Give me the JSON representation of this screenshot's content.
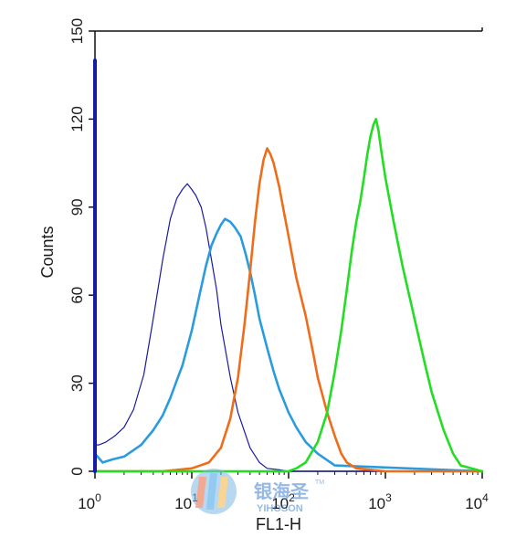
{
  "chart_data": {
    "type": "line",
    "xlabel": "FL1-H",
    "ylabel": "Counts",
    "x_scale": "log",
    "xlim": [
      1,
      10000
    ],
    "ylim": [
      0,
      150
    ],
    "y_ticks": [
      0,
      30,
      60,
      90,
      120,
      150
    ],
    "x_ticks": [
      {
        "value": 1,
        "base": "10",
        "exp": "0"
      },
      {
        "value": 10,
        "base": "10",
        "exp": "1"
      },
      {
        "value": 100,
        "base": "10",
        "exp": "2"
      },
      {
        "value": 1000,
        "base": "10",
        "exp": "3"
      },
      {
        "value": 10000,
        "base": "10",
        "exp": "4"
      }
    ],
    "grid": false,
    "legend": "none",
    "series": [
      {
        "color": "#1a1aa0",
        "width": 1.2,
        "x": [
          1.0,
          1.1,
          1.3,
          1.6,
          2.0,
          2.5,
          3.2,
          4.0,
          5.0,
          6.0,
          7.0,
          8.0,
          9.0,
          10.0,
          11.0,
          12.5,
          14.0,
          16.0,
          18.0,
          20.0,
          25.0,
          30.0,
          40.0,
          50.0,
          60.0,
          80.0,
          100.0,
          150.0,
          10000.0
        ],
        "y": [
          9,
          9,
          10,
          12,
          15,
          21,
          33,
          52,
          72,
          86,
          93,
          96,
          98,
          96,
          94,
          90,
          83,
          72,
          62,
          50,
          32,
          20,
          8,
          3,
          1,
          0.5,
          0,
          0,
          0
        ]
      },
      {
        "color": "#2b9be0",
        "width": 2.6,
        "x": [
          1.0,
          1.2,
          1.5,
          2.0,
          3.0,
          4.0,
          5.0,
          6.0,
          7.0,
          8.0,
          10.0,
          12.0,
          14.0,
          16.0,
          18.0,
          20.0,
          22.0,
          25.0,
          28.0,
          32.0,
          36.0,
          40.0,
          45.0,
          50.0,
          60.0,
          70.0,
          80.0,
          100.0,
          120.0,
          150.0,
          200.0,
          300.0,
          10000.0
        ],
        "y": [
          6,
          3,
          4,
          5,
          9,
          14,
          19,
          25,
          31,
          36,
          48,
          60,
          70,
          77,
          81,
          84,
          86,
          85,
          83,
          80,
          74,
          68,
          60,
          52,
          42,
          34,
          28,
          20,
          15,
          10,
          6,
          2,
          0
        ]
      },
      {
        "color": "#ef6d1a",
        "width": 2.6,
        "x": [
          1.0,
          5.0,
          10.0,
          15.0,
          20.0,
          25.0,
          30.0,
          35.0,
          40.0,
          45.0,
          50.0,
          55.0,
          60.0,
          65.0,
          70.0,
          80.0,
          90.0,
          100.0,
          120.0,
          150.0,
          180.0,
          200.0,
          250.0,
          300.0,
          350.0,
          400.0,
          500.0,
          1000.0,
          10000.0
        ],
        "y": [
          0,
          0,
          1,
          3,
          8,
          18,
          32,
          50,
          68,
          85,
          98,
          106,
          110,
          108,
          105,
          97,
          88,
          80,
          66,
          53,
          40,
          32,
          20,
          12,
          6,
          3,
          1,
          0,
          0
        ]
      },
      {
        "color": "#22dd22",
        "width": 2.6,
        "x": [
          1.0,
          50.0,
          100.0,
          120.0,
          150.0,
          200.0,
          250.0,
          300.0,
          350.0,
          400.0,
          450.0,
          500.0,
          550.0,
          600.0,
          650.0,
          700.0,
          750.0,
          800.0,
          850.0,
          900.0,
          1000.0,
          1200.0,
          1500.0,
          2000.0,
          2500.0,
          3000.0,
          4000.0,
          5000.0,
          6000.0,
          10000.0
        ],
        "y": [
          0,
          0,
          0,
          1,
          3,
          10,
          20,
          34,
          48,
          62,
          75,
          85,
          92,
          100,
          108,
          114,
          118,
          120,
          116,
          110,
          100,
          86,
          70,
          52,
          38,
          27,
          14,
          6,
          2,
          0
        ]
      },
      {
        "color": "#1a1aa0",
        "width": 4,
        "x": [
          1.0,
          1.0
        ],
        "y": [
          0,
          140
        ]
      }
    ]
  },
  "watermark": {
    "name": "银海圣",
    "sub": "YIHOSON",
    "tm": "TM"
  }
}
